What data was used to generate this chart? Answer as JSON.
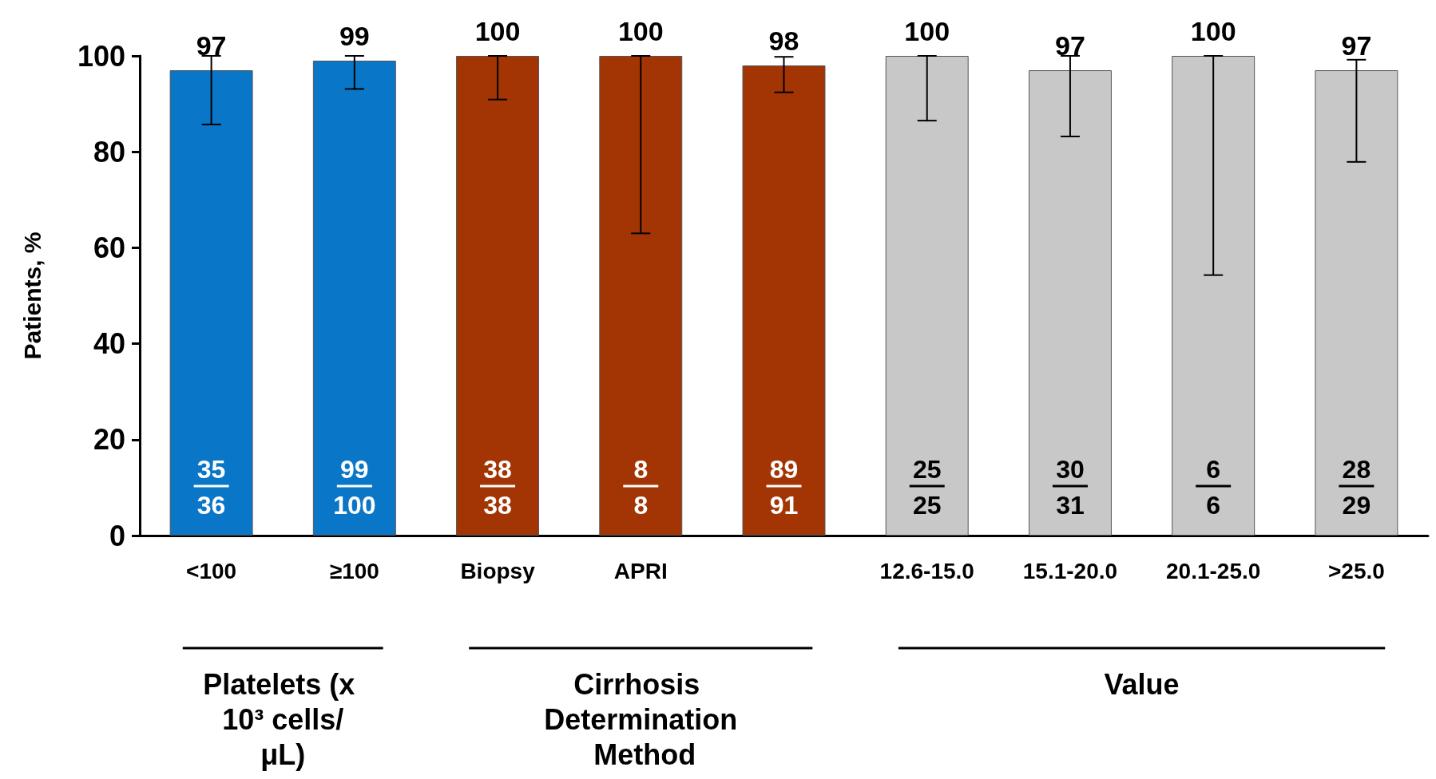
{
  "chart_data": {
    "type": "bar",
    "ylabel": "Patients, %",
    "categories": [
      "<100",
      "≥100",
      "Biopsy",
      "APRI",
      null,
      "12.6-15.0",
      "15.1-20.0",
      "20.1-25.0",
      ">25.0"
    ],
    "values": [
      97,
      99,
      100,
      100,
      98,
      100,
      97,
      100,
      97
    ],
    "colors": [
      "#0a76c8",
      "#0a76c8",
      "#a33504",
      "#a33504",
      "#a33504",
      "#c8c8c8",
      "#c8c8c8",
      "#c8c8c8",
      "#c8c8c8"
    ],
    "errors": [
      [
        85.7,
        100
      ],
      [
        93.1,
        100
      ],
      [
        90.9,
        100
      ],
      [
        63,
        100
      ],
      [
        92.4,
        99.8
      ],
      [
        86.5,
        100
      ],
      [
        83.2,
        100
      ],
      [
        54.3,
        100
      ],
      [
        77.9,
        99.2
      ]
    ],
    "data_labels": true,
    "annotations": [
      "35",
      "36",
      "99",
      "100",
      "38",
      "38",
      "8",
      "8",
      "89",
      "91",
      "25",
      "25",
      "30",
      "31",
      "6",
      "6",
      "28",
      "29",
      "Platelets (x 10³ cells/μL)",
      "Cirrhosis Determination Method",
      "Value"
    ],
    "ylim": [
      0,
      100
    ],
    "yticks": [
      0,
      20,
      40,
      60,
      80,
      100
    ],
    "grid": false
  }
}
